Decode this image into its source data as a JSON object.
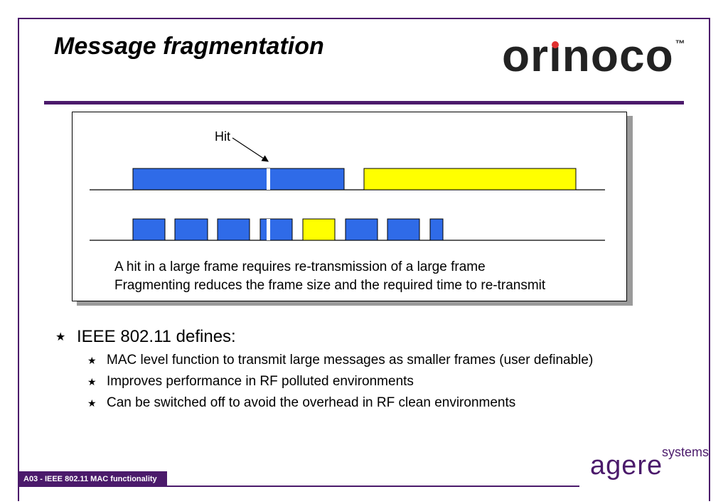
{
  "title": "Message fragmentation",
  "logo": {
    "text_before": "or",
    "text_i": "ı",
    "text_after": "noco",
    "tm": "™",
    "dot_color": "#e0302f"
  },
  "diagram": {
    "hit_label": "Hit",
    "caption_line1": "A hit in a large frame requires re-transmission of a large frame",
    "caption_line2": "Fragmenting reduces the frame size and the required time to re-transmit",
    "colors": {
      "data_frame": "#2f6be8",
      "ack_frame": "#ffff00",
      "hit_mark": "#ffffff"
    },
    "rows": [
      {
        "name": "unfragmented",
        "frames": [
          "data",
          "ack"
        ]
      },
      {
        "name": "fragmented",
        "frames": [
          "data",
          "data",
          "data",
          "data",
          "ack",
          "data",
          "data",
          "data"
        ]
      }
    ]
  },
  "bullets": {
    "main": "IEEE 802.11 defines:",
    "sub": [
      "MAC level function to transmit large messages as smaller frames (user definable)",
      "Improves performance in RF polluted environments",
      "Can be switched off to avoid the overhead in RF clean environments"
    ],
    "marker": "★"
  },
  "footer": {
    "label": "A03 -  IEEE 802.11 MAC functionality",
    "brand_word": "agere",
    "brand_sub": "systems",
    "color": "#4b1a6b"
  }
}
